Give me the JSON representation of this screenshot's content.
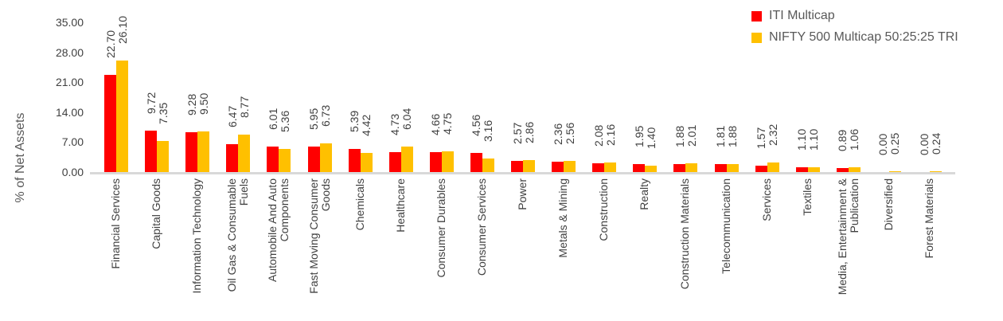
{
  "chart_data": {
    "type": "bar",
    "title": "",
    "ylabel": "% of Net Assets",
    "ylim": [
      0,
      35
    ],
    "yticks": [
      35,
      28,
      21,
      14,
      7,
      0
    ],
    "ytick_decimals": 2,
    "value_label_decimals": 2,
    "grid": false,
    "legend_position": "top-right",
    "categories": [
      "Financial Services",
      "Capital Goods",
      "Information Technology",
      "Oil Gas & Consumable\nFuels",
      "Automobile And Auto\nComponents",
      "Fast Moving Consumer\nGoods",
      "Chemicals",
      "Healthcare",
      "Consumer Durables",
      "Consumer Services",
      "Power",
      "Metals & Mining",
      "Construction",
      "Realty",
      "Construction Materials",
      "Telecommunication",
      "Services",
      "Textiles",
      "Media, Entertainment &\nPublication",
      "Diversified",
      "Forest Materials"
    ],
    "series": [
      {
        "name": "ITI Multicap",
        "color": "#FF0000",
        "values": [
          22.7,
          9.72,
          9.28,
          6.47,
          6.01,
          5.95,
          5.39,
          4.73,
          4.66,
          4.56,
          2.57,
          2.36,
          2.08,
          1.95,
          1.88,
          1.81,
          1.57,
          1.1,
          0.89,
          0.0,
          0.0
        ]
      },
      {
        "name": "NIFTY 500 Multicap 50:25:25 TRI",
        "color": "#FFC000",
        "values": [
          26.1,
          7.35,
          9.5,
          8.77,
          5.36,
          6.73,
          4.42,
          6.04,
          4.75,
          3.16,
          2.86,
          2.56,
          2.16,
          1.4,
          2.01,
          1.88,
          2.32,
          1.1,
          1.06,
          0.25,
          0.24
        ]
      }
    ],
    "colors": {
      "background": "#FFFFFF",
      "axis_line": "#D9D9D9",
      "tick_text": "#404040",
      "label_text": "#404040",
      "axis_title_text": "#595959",
      "legend_text": "#595959"
    }
  }
}
